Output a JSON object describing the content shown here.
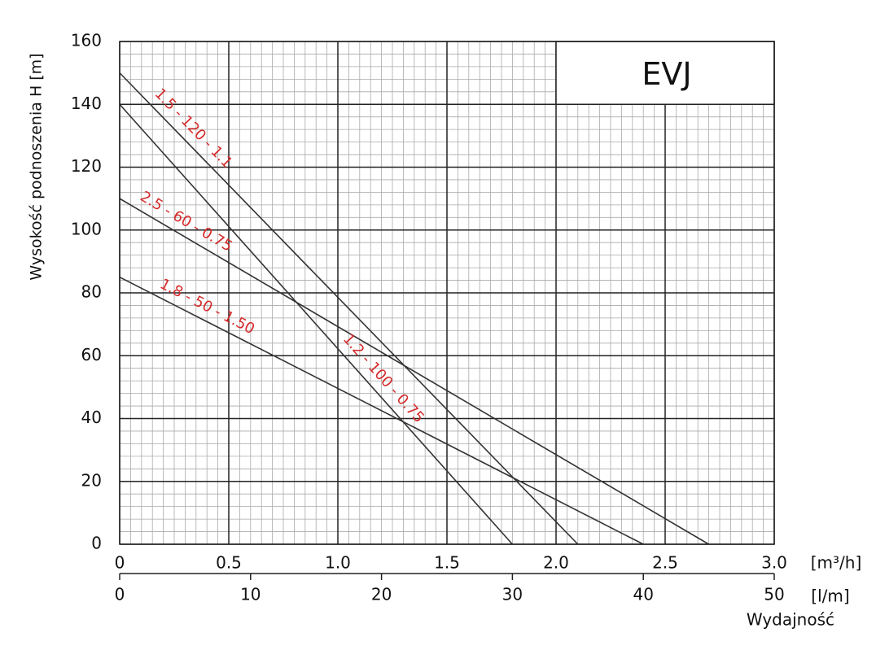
{
  "chart_data": {
    "type": "line",
    "title": "EVJ",
    "ylabel": "Wysokość podnoszenia H [m]",
    "xlabel": "Wydajność",
    "xunit": "[m³/h]",
    "x2unit": "[l/m]",
    "xlim": [
      0,
      3
    ],
    "xticks": [
      0,
      0.5,
      {
        "value": 1,
        "label": "1.0"
      },
      1.5,
      {
        "value": 2,
        "label": "2.0"
      },
      2.5,
      {
        "value": 3,
        "label": "3.0"
      }
    ],
    "x2lim": [
      0,
      50
    ],
    "x2ticks": [
      0,
      10,
      20,
      30,
      40,
      50
    ],
    "ylim": [
      0,
      160
    ],
    "yticks": [
      0,
      20,
      40,
      60,
      80,
      100,
      120,
      140,
      160
    ],
    "grid": true,
    "label_color": "#d42a2a",
    "series": [
      {
        "name": "1.5 - 120 - 1.1",
        "color": "#333333",
        "x": [
          0,
          2.1
        ],
        "values": [
          150,
          0
        ]
      },
      {
        "name": "1.2 - 100 - 0.75",
        "color": "#333333",
        "x": [
          0,
          1.8
        ],
        "values": [
          140,
          0
        ]
      },
      {
        "name": "2.5 - 60 - 0.75",
        "color": "#333333",
        "x": [
          0,
          2.7
        ],
        "values": [
          110,
          0
        ]
      },
      {
        "name": "1.8 - 50 - 1.50",
        "color": "#333333",
        "x": [
          0,
          2.4
        ],
        "values": [
          85,
          0
        ]
      }
    ]
  }
}
